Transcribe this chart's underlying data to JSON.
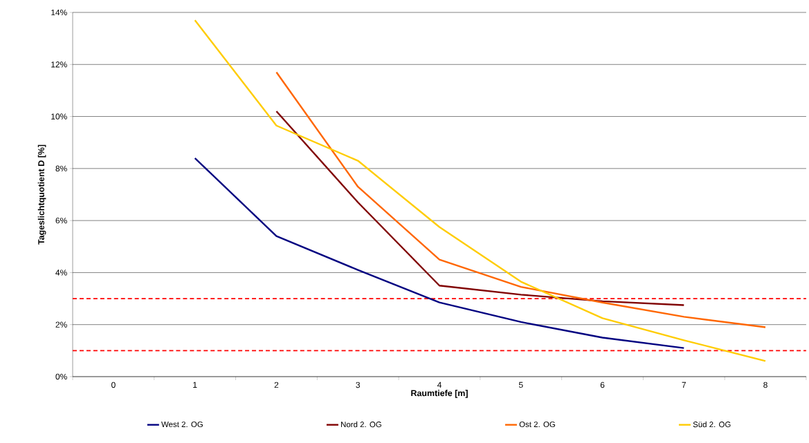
{
  "chart_data": {
    "type": "line",
    "xlabel": "Raumtiefe [m]",
    "ylabel": "Tageslichtquotient D [%]",
    "categories": [
      "0",
      "1",
      "2",
      "3",
      "4",
      "5",
      "6",
      "7",
      "8"
    ],
    "series": [
      {
        "name": "West 2. OG",
        "color": "#000080",
        "values": [
          null,
          8.4,
          5.4,
          4.1,
          2.85,
          2.1,
          1.5,
          1.1,
          null
        ]
      },
      {
        "name": "Nord 2. OG",
        "color": "#800000",
        "values": [
          null,
          null,
          10.2,
          6.7,
          3.5,
          3.15,
          2.9,
          2.75,
          null
        ]
      },
      {
        "name": "Ost 2. OG",
        "color": "#ff6600",
        "values": [
          null,
          null,
          11.7,
          7.3,
          4.5,
          3.45,
          2.85,
          2.3,
          1.9
        ]
      },
      {
        "name": "Süd 2. OG",
        "color": "#ffcc00",
        "values": [
          null,
          13.7,
          9.65,
          8.3,
          5.75,
          3.65,
          2.25,
          1.4,
          0.6
        ]
      }
    ],
    "ylim": [
      0,
      14
    ],
    "yticks": [
      {
        "value": 0,
        "label": "0%"
      },
      {
        "value": 2,
        "label": "2%"
      },
      {
        "value": 4,
        "label": "4%"
      },
      {
        "value": 6,
        "label": "6%"
      },
      {
        "value": 8,
        "label": "8%"
      },
      {
        "value": 10,
        "label": "10%"
      },
      {
        "value": 12,
        "label": "12%"
      },
      {
        "value": 14,
        "label": "14%"
      }
    ],
    "ref_lines": [
      {
        "axis": "y",
        "value": 3,
        "color": "#ff0000",
        "line_style": "dashed"
      },
      {
        "axis": "y",
        "value": 1,
        "color": "#ff0000",
        "line_style": "dashed"
      }
    ],
    "grid": "y",
    "legend": "bottom",
    "marker": "none",
    "line_style": "solid"
  }
}
